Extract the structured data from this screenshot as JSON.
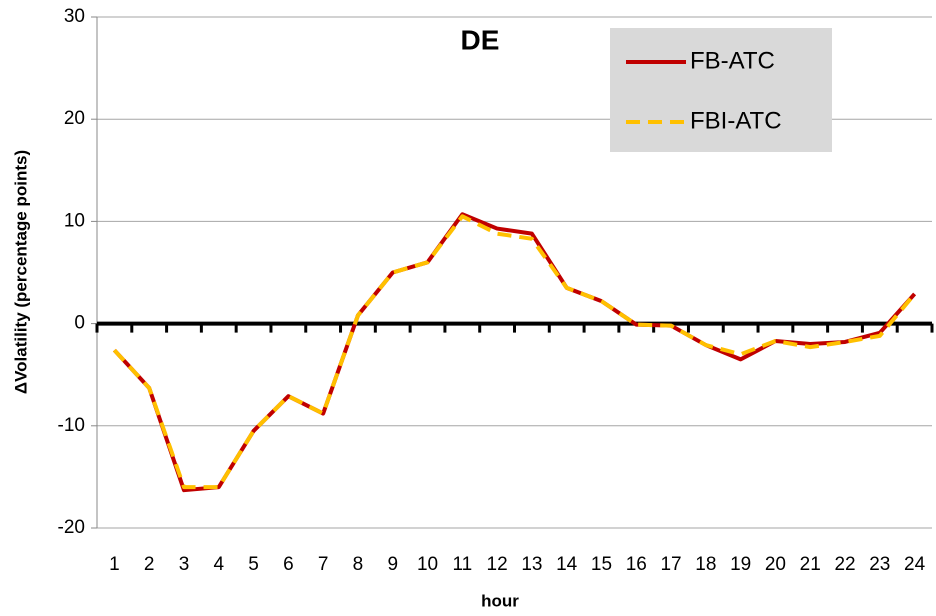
{
  "chart_data": {
    "type": "line",
    "title": "DE",
    "x_label": "hour",
    "y_label": "ΔVolatility  (percentage points)",
    "categories": [
      "1",
      "2",
      "3",
      "4",
      "5",
      "6",
      "7",
      "8",
      "9",
      "10",
      "11",
      "12",
      "13",
      "14",
      "15",
      "16",
      "17",
      "18",
      "19",
      "20",
      "21",
      "22",
      "23",
      "24"
    ],
    "series": [
      {
        "name": "FB-ATC",
        "color": "#c00000",
        "dashed": false,
        "values": [
          -2.6,
          -6.3,
          -16.3,
          -16.0,
          -10.5,
          -7.1,
          -8.8,
          0.8,
          5.0,
          6.0,
          10.7,
          9.3,
          8.8,
          3.5,
          2.2,
          -0.1,
          -0.2,
          -2.1,
          -3.5,
          -1.7,
          -2.0,
          -1.8,
          -0.9,
          2.9
        ]
      },
      {
        "name": "FBI-ATC",
        "color": "#ffc000",
        "dashed": true,
        "values": [
          -2.6,
          -6.3,
          -16.0,
          -16.0,
          -10.5,
          -7.1,
          -8.8,
          0.8,
          5.0,
          6.0,
          10.5,
          8.8,
          8.3,
          3.5,
          2.2,
          -0.1,
          -0.2,
          -2.1,
          -3.0,
          -1.7,
          -2.3,
          -1.8,
          -1.2,
          2.9
        ]
      }
    ],
    "ylim": [
      -20,
      30
    ],
    "yticks": [
      -20,
      -10,
      0,
      10,
      20,
      30
    ],
    "grid": true,
    "legend": "upper right"
  }
}
